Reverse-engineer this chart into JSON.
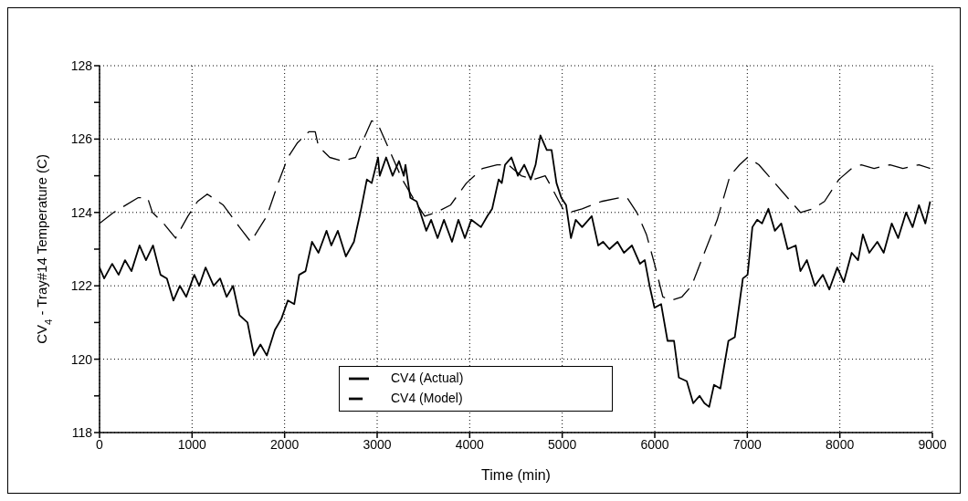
{
  "chart_data": {
    "type": "line",
    "xlabel": "Time (min)",
    "ylabel": "CV$_{4}$ - Tray#14 Temperature (C)",
    "xlim": [
      0,
      9000
    ],
    "xticks": [
      0,
      1000,
      2000,
      3000,
      4000,
      5000,
      6000,
      7000,
      8000,
      9000
    ],
    "ylim": [
      118,
      128
    ],
    "yticks": [
      118,
      {
        "value": 119,
        "label": null
      },
      120,
      {
        "value": 121,
        "label": null
      },
      122,
      {
        "value": 123,
        "label": null
      },
      124,
      {
        "value": 125,
        "label": null
      },
      126,
      {
        "value": 127,
        "label": null
      },
      128
    ],
    "grid": true,
    "legend": "bottom",
    "marker": "none",
    "series": [
      {
        "name": "CV4 (Actual)",
        "color": "#000000",
        "line_style": "solid",
        "x": [
          0,
          50,
          136,
          206,
          275,
          345,
          432,
          502,
          578,
          659,
          728,
          798,
          868,
          937,
          1024,
          1077,
          1146,
          1233,
          1303,
          1373,
          1443,
          1512,
          1599,
          1669,
          1739,
          1808,
          1895,
          1965,
          2035,
          2104,
          2157,
          2226,
          2296,
          2366,
          2453,
          2505,
          2575,
          2662,
          2749,
          2819,
          2889,
          2941,
          3010,
          3028,
          3097,
          3167,
          3236,
          3288,
          3306,
          3358,
          3427,
          3479,
          3531,
          3583,
          3653,
          3722,
          3809,
          3878,
          3948,
          4017,
          4122,
          4191,
          4243,
          4313,
          4347,
          4382,
          4451,
          4521,
          4590,
          4660,
          4712,
          4764,
          4833,
          4885,
          4938,
          4990,
          5042,
          5094,
          5146,
          5215,
          5319,
          5389,
          5441,
          5510,
          5597,
          5667,
          5753,
          5840,
          5892,
          5944,
          5997,
          6069,
          6138,
          6208,
          6260,
          6346,
          6415,
          6484,
          6536,
          6588,
          6640,
          6709,
          6796,
          6865,
          6952,
          7003,
          7055,
          7107,
          7159,
          7228,
          7298,
          7367,
          7436,
          7523,
          7574,
          7644,
          7730,
          7817,
          7886,
          7972,
          8042,
          8128,
          8197,
          8249,
          8318,
          8405,
          8474,
          8561,
          8630,
          8716,
          8786,
          8855,
          8924,
          8976
        ],
        "values": [
          122.5,
          122.2,
          122.6,
          122.3,
          122.7,
          122.4,
          123.1,
          122.7,
          123.1,
          122.3,
          122.2,
          121.6,
          122.0,
          121.7,
          122.3,
          122.0,
          122.5,
          122.0,
          122.2,
          121.7,
          122.0,
          121.2,
          121.0,
          120.1,
          120.4,
          120.1,
          120.8,
          121.1,
          121.6,
          121.5,
          122.3,
          122.4,
          123.2,
          122.9,
          123.5,
          123.1,
          123.5,
          122.8,
          123.2,
          124.0,
          124.9,
          124.8,
          125.5,
          125.0,
          125.5,
          125.0,
          125.4,
          125.0,
          125.3,
          124.4,
          124.3,
          123.9,
          123.5,
          123.8,
          123.3,
          123.8,
          123.2,
          123.8,
          123.3,
          123.8,
          123.6,
          123.9,
          124.1,
          124.9,
          124.8,
          125.3,
          125.5,
          125.0,
          125.3,
          124.9,
          125.3,
          126.1,
          125.7,
          125.7,
          124.8,
          124.4,
          124.2,
          123.3,
          123.8,
          123.6,
          123.9,
          123.1,
          123.2,
          123.0,
          123.2,
          122.9,
          123.1,
          122.6,
          122.7,
          122.0,
          121.4,
          121.5,
          120.5,
          120.5,
          119.5,
          119.4,
          118.8,
          119.0,
          118.8,
          118.7,
          119.3,
          119.2,
          120.5,
          120.6,
          122.2,
          122.3,
          123.6,
          123.8,
          123.7,
          124.1,
          123.5,
          123.7,
          123.0,
          123.1,
          122.4,
          122.7,
          122.0,
          122.3,
          121.9,
          122.5,
          122.1,
          122.9,
          122.7,
          123.4,
          122.9,
          123.2,
          122.9,
          123.7,
          123.3,
          124.0,
          123.6,
          124.2,
          123.7,
          124.3
        ]
      },
      {
        "name": "CV4 (Model)",
        "color": "#000000",
        "line_style": "dashed",
        "x": [
          0,
          153,
          415,
          519,
          571,
          693,
          822,
          955,
          1059,
          1164,
          1338,
          1512,
          1634,
          1808,
          1930,
          2035,
          2139,
          2261,
          2331,
          2366,
          2488,
          2627,
          2767,
          2854,
          2941,
          3010,
          3132,
          3271,
          3410,
          3514,
          3635,
          3792,
          3965,
          4139,
          4295,
          4417,
          4556,
          4694,
          4816,
          4903,
          5007,
          5076,
          5215,
          5424,
          5615,
          5701,
          5806,
          5910,
          5997,
          6087,
          6173,
          6294,
          6398,
          6536,
          6675,
          6813,
          6917,
          7003,
          7125,
          7298,
          7436,
          7574,
          7713,
          7834,
          7990,
          8128,
          8232,
          8370,
          8543,
          8682,
          8855,
          8976
        ],
        "values": [
          123.7,
          124.0,
          124.4,
          124.4,
          124.0,
          123.7,
          123.3,
          123.9,
          124.3,
          124.5,
          124.2,
          123.6,
          123.2,
          123.9,
          124.8,
          125.5,
          125.9,
          126.2,
          126.2,
          125.8,
          125.5,
          125.4,
          125.5,
          126.0,
          126.5,
          126.4,
          125.7,
          124.9,
          124.3,
          123.9,
          124.0,
          124.2,
          124.8,
          125.2,
          125.3,
          125.3,
          125.0,
          124.9,
          125.0,
          124.6,
          124.1,
          124.0,
          124.1,
          124.3,
          124.4,
          124.4,
          124.0,
          123.4,
          122.6,
          121.7,
          121.6,
          121.7,
          122.0,
          122.9,
          123.8,
          125.0,
          125.3,
          125.5,
          125.3,
          124.8,
          124.4,
          124.0,
          124.1,
          124.3,
          124.9,
          125.2,
          125.3,
          125.2,
          125.3,
          125.2,
          125.3,
          125.2
        ]
      }
    ]
  }
}
